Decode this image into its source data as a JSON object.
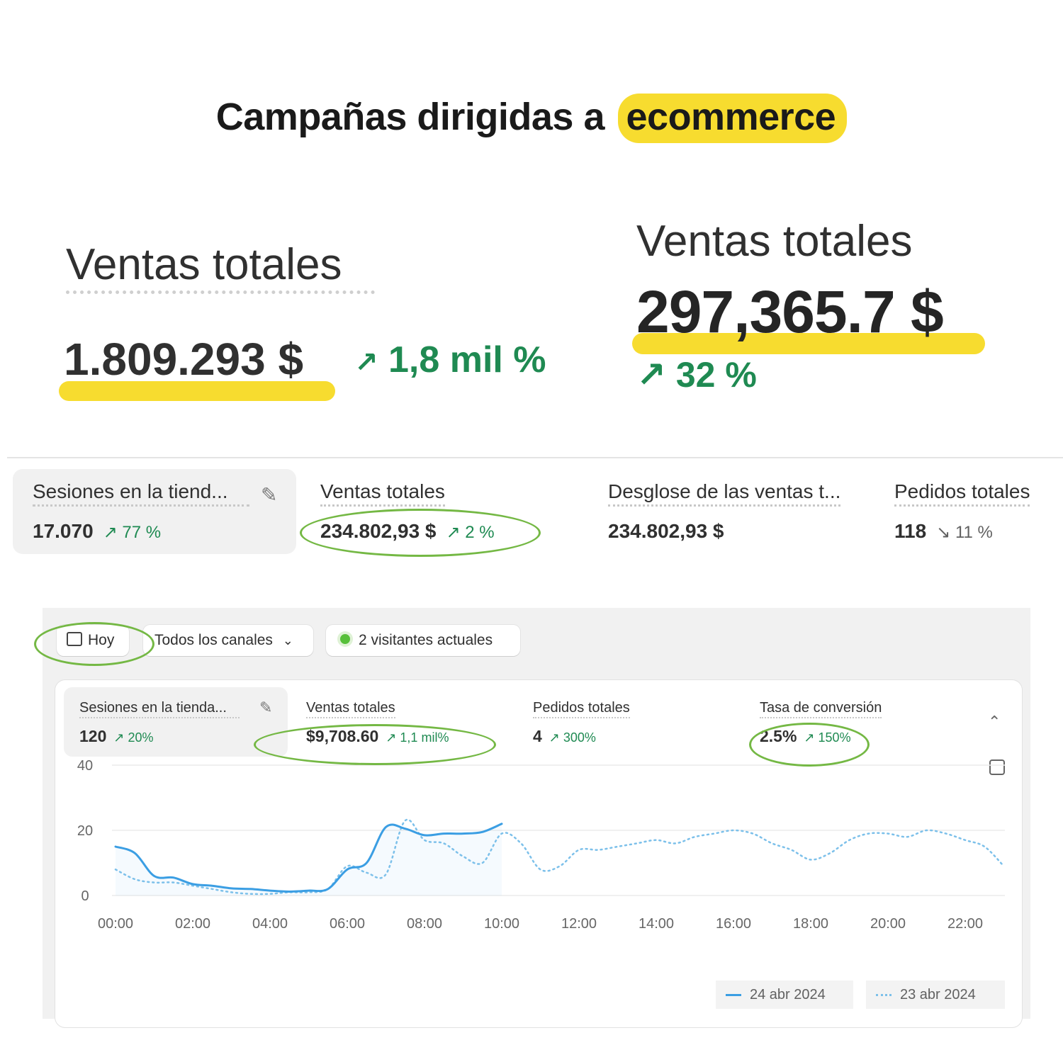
{
  "headline": {
    "text_before": "Campañas dirigidas a",
    "highlight": "ecommerce"
  },
  "big_metric_a": {
    "label": "Ventas totales",
    "value": "1.809.293 $",
    "delta": "1,8 mil %"
  },
  "big_metric_b": {
    "label": "Ventas totales",
    "value": "297,365.7 $",
    "delta": "32 %"
  },
  "metric_strip": [
    {
      "label": "Sesiones en la tiend...",
      "value": "17.070",
      "delta": "77 %",
      "trend": "up"
    },
    {
      "label": "Ventas totales",
      "value": "234.802,93 $",
      "delta": "2 %",
      "trend": "up"
    },
    {
      "label": "Desglose de las ventas t...",
      "value": "234.802,93 $"
    },
    {
      "label": "Pedidos totales",
      "value": "118",
      "delta": "11 %",
      "trend": "down"
    }
  ],
  "dashboard": {
    "filters": {
      "date": "Hoy",
      "channels": "Todos los canales",
      "visitors": "2 visitantes actuales"
    },
    "metrics": [
      {
        "label": "Sesiones en la tienda...",
        "value": "120",
        "delta": "20%"
      },
      {
        "label": "Ventas totales",
        "value": "$9,708.60",
        "delta": "1,1 mil%"
      },
      {
        "label": "Pedidos totales",
        "value": "4",
        "delta": "300%"
      },
      {
        "label": "Tasa de conversión",
        "value": "2.5%",
        "delta": "150%"
      }
    ],
    "legend": [
      "24 abr 2024",
      "23 abr 2024"
    ]
  },
  "colors": {
    "highlight": "#f7dc2f",
    "positive": "#1f8a52",
    "annotation": "#74b844",
    "series_current": "#3b9ee3",
    "series_previous": "#7cc0ea"
  },
  "chart_data": {
    "type": "line",
    "y_ticks": [
      "40",
      "20",
      "0"
    ],
    "x_ticks": [
      "00:00",
      "02:00",
      "04:00",
      "06:00",
      "08:00",
      "10:00",
      "12:00",
      "14:00",
      "16:00",
      "18:00",
      "20:00",
      "22:00"
    ],
    "ylim": [
      0,
      40
    ],
    "grid": true,
    "legend_position": "bottom-right",
    "series": [
      {
        "name": "24 abr 2024",
        "style": "solid",
        "x": [
          0,
          0.5,
          1,
          1.5,
          2,
          2.5,
          3,
          3.5,
          4,
          4.5,
          5,
          5.5,
          6,
          6.5,
          7,
          7.5,
          8,
          8.5,
          9,
          9.5,
          10
        ],
        "y": [
          15,
          13,
          6,
          5.5,
          3.5,
          3,
          2.2,
          2,
          1.5,
          1.2,
          1.5,
          2,
          8,
          10,
          21,
          20.5,
          18.5,
          19,
          19,
          19.5,
          22
        ]
      },
      {
        "name": "23 abr 2024",
        "style": "dotted",
        "x": [
          0,
          0.5,
          1,
          1.5,
          2,
          2.5,
          3,
          3.5,
          4,
          4.5,
          5,
          5.5,
          6,
          6.5,
          7,
          7.5,
          8,
          8.5,
          9,
          9.5,
          10,
          10.5,
          11,
          11.5,
          12,
          12.5,
          13,
          13.5,
          14,
          14.5,
          15,
          15.5,
          16,
          16.5,
          17,
          17.5,
          18,
          18.5,
          19,
          19.5,
          20,
          20.5,
          21,
          21.5,
          22,
          22.5,
          23
        ],
        "y": [
          8,
          5,
          4,
          4,
          3,
          2,
          1,
          0.5,
          0.5,
          1,
          1,
          2,
          9,
          7,
          6.5,
          23,
          17,
          16,
          12,
          10,
          19,
          16,
          8,
          9,
          14,
          14,
          15,
          16,
          17,
          16,
          18,
          19,
          20,
          19,
          16,
          14,
          11,
          13,
          17,
          19,
          19,
          18,
          20,
          19,
          17,
          15,
          9
        ]
      }
    ]
  }
}
